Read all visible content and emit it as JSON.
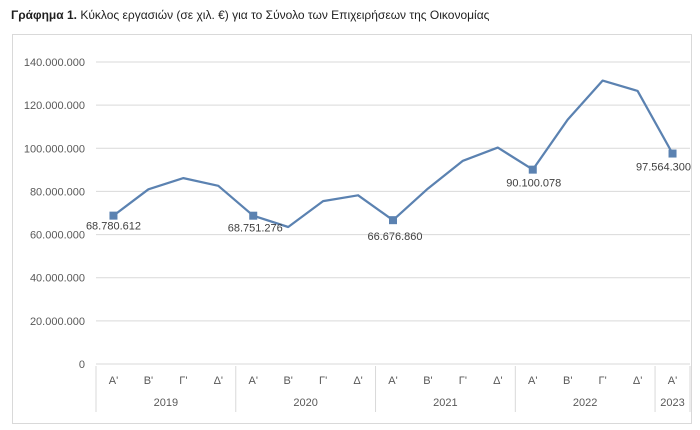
{
  "caption": {
    "label": "Γράφημα 1.",
    "text": "Κύκλος εργασιών (σε χιλ. €) για το Σύνολο των Επιχειρήσεων της Οικονομίας"
  },
  "chart_data": {
    "type": "line",
    "title": "Γράφημα 1. Κύκλος εργασιών (σε χιλ. €) για το Σύνολο των Επιχειρήσεων της Οικονομίας",
    "xlabel": "",
    "ylabel": "",
    "ylim": [
      0,
      140000000
    ],
    "y_ticks": [
      0,
      20000000,
      40000000,
      60000000,
      80000000,
      100000000,
      120000000,
      140000000
    ],
    "y_tick_labels": [
      "0",
      "20.000.000",
      "40.000.000",
      "60.000.000",
      "80.000.000",
      "100.000.000",
      "120.000.000",
      "140.000.000"
    ],
    "grid": true,
    "legend": "none",
    "line_color": "#5b82b1",
    "grid_color": "#d9d9d9",
    "categories": [
      "Α'",
      "Β'",
      "Γ'",
      "Δ'",
      "Α'",
      "Β'",
      "Γ'",
      "Δ'",
      "Α'",
      "Β'",
      "Γ'",
      "Δ'",
      "Α'",
      "Β'",
      "Γ'",
      "Δ'",
      "Α'"
    ],
    "year_groups": [
      {
        "year": "2019",
        "count": 4
      },
      {
        "year": "2020",
        "count": 4
      },
      {
        "year": "2021",
        "count": 4
      },
      {
        "year": "2022",
        "count": 4
      },
      {
        "year": "2023",
        "count": 1
      }
    ],
    "values": [
      68780612,
      81000000,
      86200000,
      82600000,
      68751276,
      63500000,
      75500000,
      78200000,
      66676860,
      81300000,
      94200000,
      100300000,
      90100078,
      113300000,
      131400000,
      126600000,
      97564300
    ],
    "markers": [
      0,
      4,
      8,
      12,
      16
    ],
    "data_labels": [
      {
        "index": 0,
        "text": "68.780.612"
      },
      {
        "index": 4,
        "text": "68.751.276"
      },
      {
        "index": 8,
        "text": "66.676.860"
      },
      {
        "index": 12,
        "text": "90.100.078"
      },
      {
        "index": 16,
        "text": "97.564.300"
      }
    ]
  }
}
